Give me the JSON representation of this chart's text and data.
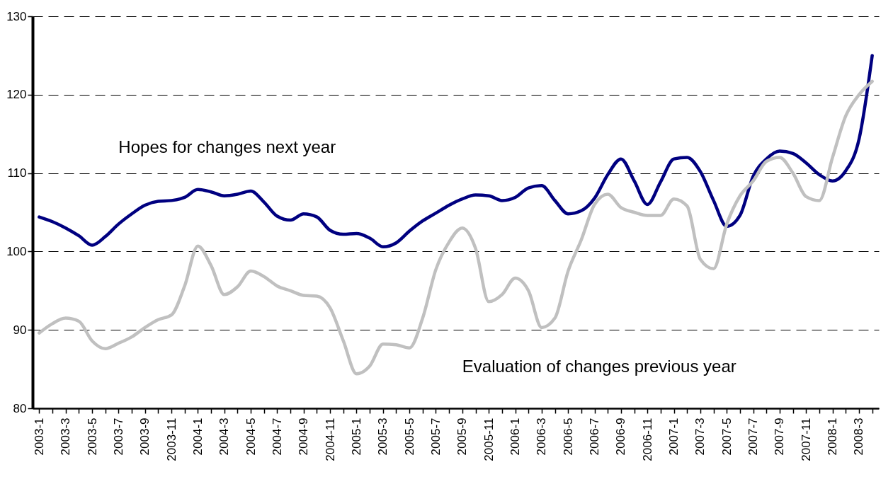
{
  "chart_data": {
    "type": "line",
    "categories": [
      "2003-1",
      null,
      "2003-3",
      null,
      "2003-5",
      null,
      "2003-7",
      null,
      "2003-9",
      null,
      "2003-11",
      null,
      "2004-1",
      null,
      "2004-3",
      null,
      "2004-5",
      null,
      "2004-7",
      null,
      "2004-9",
      null,
      "2004-11",
      null,
      "2005-1",
      null,
      "2005-3",
      null,
      "2005-5",
      null,
      "2005-7",
      null,
      "2005-9",
      null,
      "2005-11",
      null,
      "2006-1",
      null,
      "2006-3",
      null,
      "2006-5",
      null,
      "2006-7",
      null,
      "2006-9",
      null,
      "2006-11",
      null,
      "2007-1",
      null,
      "2007-3",
      null,
      "2007-5",
      null,
      "2007-7",
      null,
      "2007-9",
      null,
      "2007-11",
      null,
      "2008-1",
      null,
      "2008-3",
      null
    ],
    "series": [
      {
        "name": "Hopes for changes next year",
        "color": "#000080",
        "values": [
          104.4,
          103.8,
          103.0,
          102.0,
          100.8,
          101.9,
          103.5,
          104.8,
          105.9,
          106.4,
          106.5,
          106.9,
          107.9,
          107.6,
          107.1,
          107.3,
          107.7,
          106.3,
          104.5,
          104.0,
          104.8,
          104.4,
          102.7,
          102.2,
          102.3,
          101.7,
          100.6,
          101.1,
          102.6,
          103.9,
          104.9,
          105.9,
          106.7,
          107.2,
          107.1,
          106.5,
          106.9,
          108.1,
          108.4,
          106.5,
          104.8,
          105.2,
          106.8,
          109.8,
          111.8,
          109.0,
          106.0,
          108.9,
          111.8,
          112.0,
          110.2,
          106.5,
          103.2,
          104.6,
          109.6,
          111.8,
          112.8,
          112.5,
          111.3,
          109.8,
          109.0,
          110.3,
          114.3,
          125.0
        ]
      },
      {
        "name": "Evaluation of changes previous year",
        "color": "#c0c0c0",
        "values": [
          89.6,
          90.8,
          91.5,
          91.1,
          88.6,
          87.6,
          88.3,
          89.1,
          90.3,
          91.3,
          91.9,
          95.6,
          100.7,
          98.2,
          94.5,
          95.5,
          97.5,
          96.8,
          95.6,
          95.0,
          94.4,
          94.3,
          92.8,
          88.6,
          84.4,
          85.4,
          88.2,
          88.1,
          87.7,
          91.5,
          97.7,
          101.2,
          103.0,
          100.4,
          93.6,
          94.5,
          96.6,
          95.0,
          90.3,
          91.5,
          97.5,
          101.5,
          106.0,
          107.3,
          105.6,
          105.0,
          104.6,
          104.6,
          106.7,
          105.8,
          99.0,
          97.8,
          103.5,
          107.1,
          109.0,
          111.5,
          112.0,
          110.0,
          107.0,
          106.5,
          112.0,
          117.3,
          120.0,
          121.7
        ]
      }
    ],
    "ylim": [
      80,
      130
    ],
    "yticks": [
      80,
      90,
      100,
      110,
      120,
      130
    ],
    "grid": "y",
    "legend": false,
    "line_style": "solid",
    "marker": "none"
  }
}
